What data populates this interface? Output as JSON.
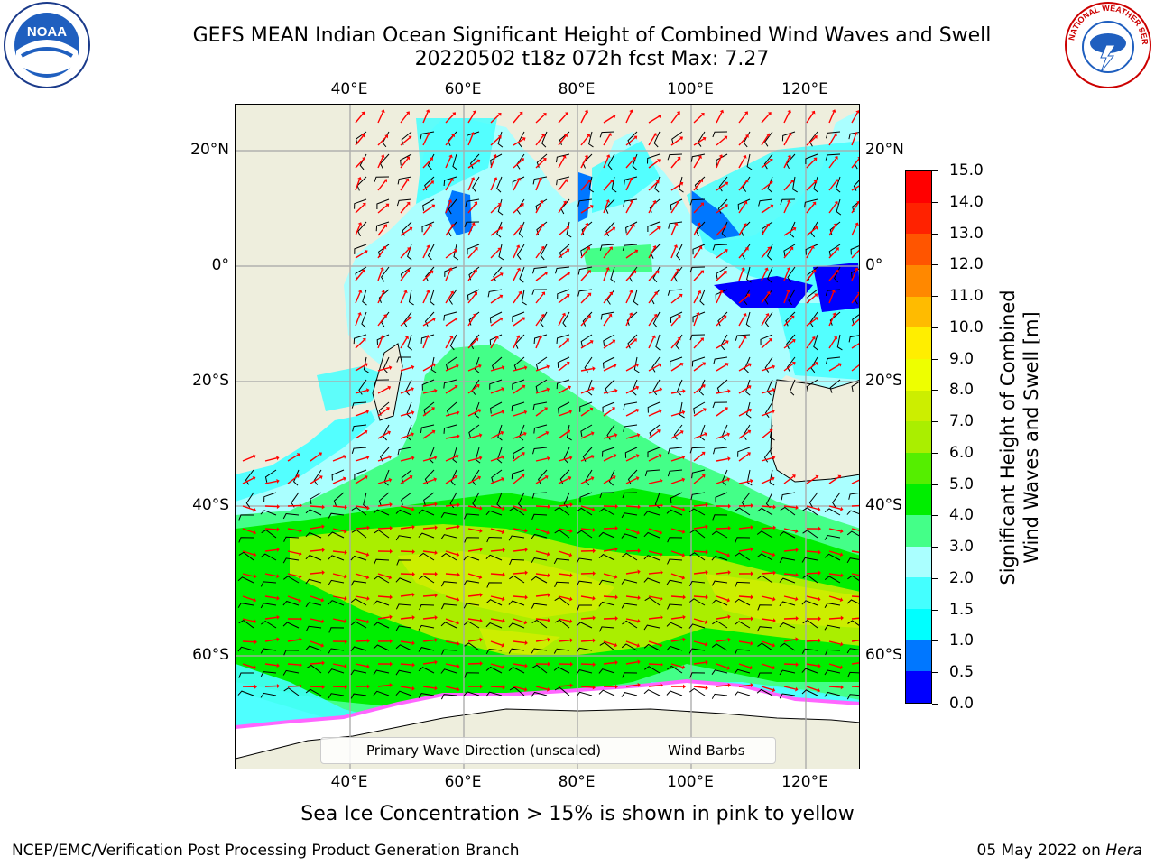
{
  "title": {
    "line1": "GEFS MEAN Indian Ocean Significant Height of Combined Wind Waves and Swell",
    "line2": "20220502 t18z 072h fcst   Max: 7.27"
  },
  "logos": {
    "left": "noaa-logo",
    "right": "national-weather-service-logo"
  },
  "map": {
    "lon_ticks": [
      "40°E",
      "60°E",
      "80°E",
      "100°E",
      "120°E"
    ],
    "lat_ticks": [
      "20°N",
      "0°",
      "20°S",
      "40°S",
      "60°S"
    ],
    "colors": {
      "land": "#eeeedd",
      "sea_ice": "#ffffff",
      "wave_arrow": "#ff0000",
      "wind_barb": "#000000",
      "grid": "#aaaaaa"
    }
  },
  "colorbar": {
    "label_line1": "Significant Height of Combined",
    "label_line2": "Wind Waves and Swell [m]",
    "ticks": [
      "0.0",
      "0.5",
      "1.0",
      "1.5",
      "2.0",
      "3.0",
      "4.0",
      "5.0",
      "6.0",
      "7.0",
      "8.0",
      "9.0",
      "10.0",
      "11.0",
      "12.0",
      "13.0",
      "14.0",
      "15.0"
    ],
    "colors": [
      "#0000ff",
      "#0077ff",
      "#00ffff",
      "#44ffff",
      "#aaffff",
      "#44ff88",
      "#00ee00",
      "#55ee00",
      "#aaee00",
      "#ccee00",
      "#eeff00",
      "#ffee00",
      "#ffbb00",
      "#ff8800",
      "#ff5500",
      "#ff2200",
      "#ff0000"
    ]
  },
  "legend": {
    "wave_label": "Primary Wave Direction (unscaled)",
    "wind_label": "Wind Barbs"
  },
  "note": "Sea Ice Concentration > 15% is shown in pink to yellow",
  "footer": {
    "left": "NCEP/EMC/Verification Post Processing Product Generation Branch",
    "right_date": "05 May 2022 on",
    "right_host": "Hera"
  }
}
